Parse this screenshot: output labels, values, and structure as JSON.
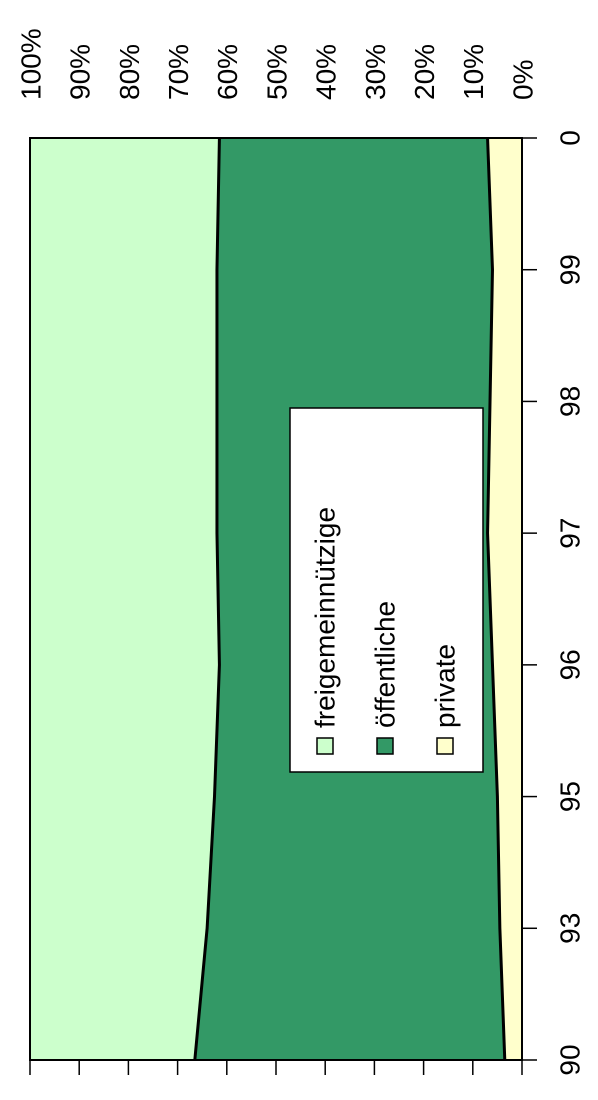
{
  "chart_data": {
    "type": "stacked_area",
    "categories": [
      "90",
      "93",
      "95",
      "96",
      "97",
      "98",
      "99",
      "0"
    ],
    "series": [
      {
        "name": "freigemeinnützige",
        "color": "#ccffcc",
        "values": [
          33.5,
          36,
          37.5,
          38.5,
          38,
          38,
          38,
          38.5
        ]
      },
      {
        "name": "öffentliche",
        "color": "#339966",
        "values": [
          63,
          59.5,
          57.5,
          55.5,
          55,
          55.5,
          56,
          54.5
        ]
      },
      {
        "name": "private",
        "color": "#ffffcc",
        "values": [
          3.5,
          4.5,
          5,
          6,
          7,
          6.5,
          6,
          7
        ]
      }
    ],
    "ylim": [
      0,
      100
    ],
    "yticks": [
      {
        "value": 100,
        "label": "100%"
      },
      {
        "value": 90,
        "label": "90%"
      },
      {
        "value": 80,
        "label": "80%"
      },
      {
        "value": 70,
        "label": "70%"
      },
      {
        "value": 60,
        "label": "60%"
      },
      {
        "value": 50,
        "label": "50%"
      },
      {
        "value": 40,
        "label": "40%"
      },
      {
        "value": 30,
        "label": "30%"
      },
      {
        "value": 20,
        "label": "20%"
      },
      {
        "value": 10,
        "label": "10%"
      },
      {
        "value": 0,
        "label": "0%"
      }
    ],
    "stacked": true
  }
}
